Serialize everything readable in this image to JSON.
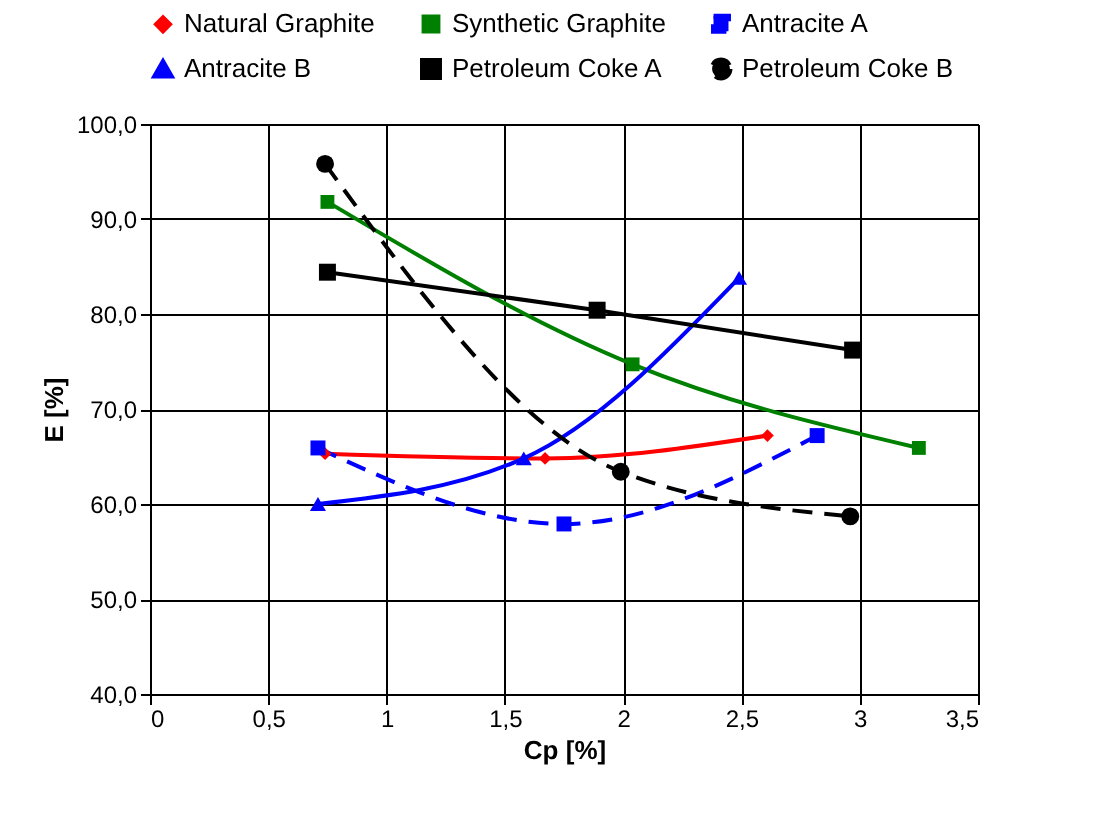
{
  "chart_data": {
    "type": "line",
    "xlabel": "Cp [%]",
    "ylabel": "E [%]",
    "xlim": [
      0,
      3.5
    ],
    "xticks": [
      0,
      {
        "value": 0.5,
        "label": "0,5"
      },
      1,
      {
        "value": 1.5,
        "label": "1,5"
      },
      2,
      {
        "value": 2.5,
        "label": "2,5"
      },
      3,
      {
        "value": 3.5,
        "label": "3,5"
      }
    ],
    "ylim": [
      40,
      100
    ],
    "yticks": [
      {
        "value": 40,
        "label": "40,0"
      },
      {
        "value": 50,
        "label": "50,0"
      },
      {
        "value": 60,
        "label": "60,0"
      },
      {
        "value": 70,
        "label": "70,0"
      },
      {
        "value": 80,
        "label": "80,0"
      },
      {
        "value": 90,
        "label": "90,0"
      },
      {
        "value": 100,
        "label": "100,0"
      }
    ],
    "grid": true,
    "legend": "top",
    "series": [
      {
        "name": "Natural Graphite",
        "color": "#ff0000",
        "marker": "diamond",
        "line_style": "solid",
        "x": [
          0.74,
          1.67,
          2.61
        ],
        "values": [
          65.3,
          64.8,
          67.2
        ]
      },
      {
        "name": "Synthetic Graphite",
        "color": "#008000",
        "marker": "square",
        "line_style": "solid",
        "x": [
          0.75,
          2.04,
          3.25
        ],
        "values": [
          91.8,
          74.7,
          65.9
        ]
      },
      {
        "name": "Antracite A",
        "color": "#0000ff",
        "marker": "square",
        "line_style": "dashed",
        "x": [
          0.71,
          1.75,
          2.82
        ],
        "values": [
          65.9,
          57.9,
          67.2
        ]
      },
      {
        "name": "Antracite B",
        "color": "#0000ff",
        "marker": "triangle",
        "line_style": "solid",
        "x": [
          0.71,
          1.58,
          2.49
        ],
        "values": [
          60.0,
          64.8,
          83.8
        ]
      },
      {
        "name": "Petroleum Coke A",
        "color": "#000000",
        "marker": "square",
        "line_style": "solid",
        "x": [
          0.75,
          1.89,
          2.97
        ],
        "values": [
          84.4,
          80.4,
          76.2
        ]
      },
      {
        "name": "Petroleum Coke B",
        "color": "#000000",
        "marker": "circle",
        "line_style": "dashed",
        "x": [
          0.74,
          1.99,
          2.96
        ],
        "values": [
          95.8,
          63.4,
          58.7
        ]
      }
    ]
  }
}
